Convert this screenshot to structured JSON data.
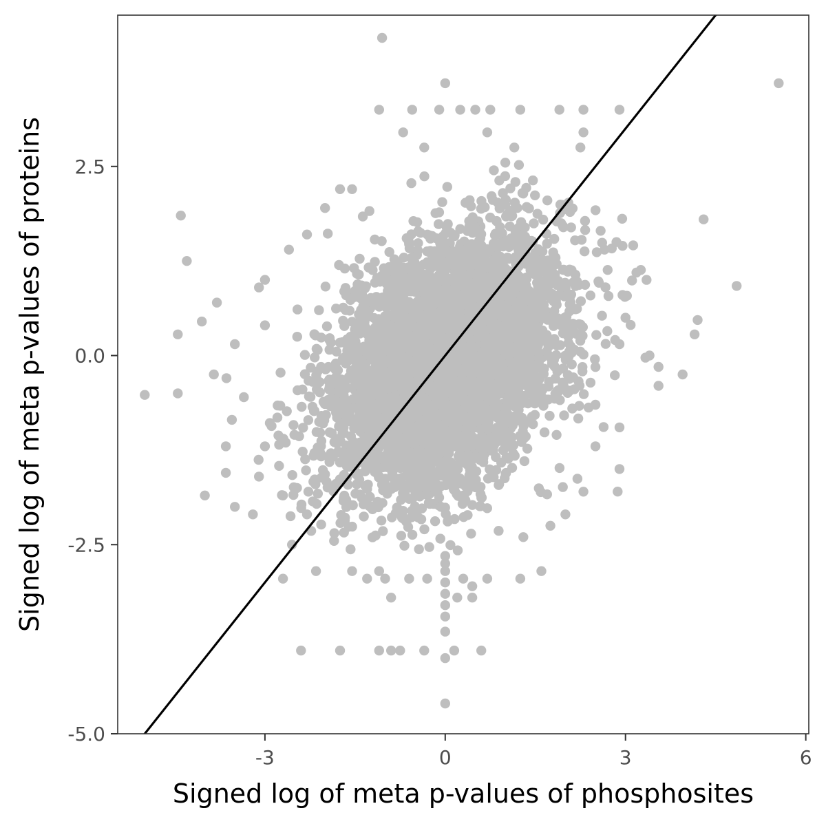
{
  "chart_data": {
    "type": "scatter",
    "title": "",
    "xlabel": "Signed log of meta p-values of phosphosites",
    "ylabel": "Signed log of meta p-values of proteins",
    "xlim": [
      -5.45,
      6.05
    ],
    "ylim": [
      -5.0,
      4.5
    ],
    "x_ticks": [
      -3,
      0,
      3,
      6
    ],
    "y_ticks": [
      2.5,
      0.0,
      -2.5,
      -5.0
    ],
    "x_tick_labels": [
      "-3",
      "0",
      "3",
      "6"
    ],
    "y_tick_labels": [
      "2.5",
      "0.0",
      "-2.5",
      "-5.0"
    ],
    "grid": false,
    "legend": "none",
    "point_color": "#bebebe",
    "line_color": "#000000",
    "reference_line": {
      "slope": 1.0,
      "intercept": 0.0
    },
    "cloud": {
      "center": [
        0.0,
        -0.1
      ],
      "x_spread": 0.95,
      "y_spread": 0.85,
      "correlation": 0.35,
      "approx_points": 5000
    },
    "points": [
      [
        -1.05,
        4.2
      ],
      [
        5.55,
        3.6
      ],
      [
        0.0,
        3.6
      ],
      [
        -1.1,
        3.25
      ],
      [
        -0.55,
        3.25
      ],
      [
        -0.1,
        3.25
      ],
      [
        0.25,
        3.25
      ],
      [
        0.5,
        3.25
      ],
      [
        0.75,
        3.25
      ],
      [
        1.25,
        3.25
      ],
      [
        1.9,
        3.25
      ],
      [
        2.3,
        3.25
      ],
      [
        2.9,
        3.25
      ],
      [
        -0.7,
        2.95
      ],
      [
        0.7,
        2.95
      ],
      [
        2.3,
        2.95
      ],
      [
        -0.35,
        2.75
      ],
      [
        1.15,
        2.75
      ],
      [
        2.25,
        2.75
      ],
      [
        -4.4,
        1.85
      ],
      [
        4.3,
        1.8
      ],
      [
        -4.3,
        1.25
      ],
      [
        -2.3,
        1.6
      ],
      [
        4.85,
        0.92
      ],
      [
        4.2,
        0.47
      ],
      [
        -4.05,
        0.45
      ],
      [
        -3.8,
        0.7
      ],
      [
        -4.45,
        0.28
      ],
      [
        4.15,
        0.28
      ],
      [
        -5.0,
        -0.52
      ],
      [
        -4.45,
        -0.5
      ],
      [
        3.95,
        -0.25
      ],
      [
        3.55,
        -0.4
      ],
      [
        3.4,
        0.0
      ],
      [
        -4.0,
        -1.85
      ],
      [
        -3.65,
        -1.55
      ],
      [
        -3.5,
        -2.0
      ],
      [
        -3.2,
        -2.1
      ],
      [
        -2.7,
        -2.95
      ],
      [
        -2.4,
        -3.9
      ],
      [
        -1.75,
        -3.9
      ],
      [
        -1.1,
        -3.9
      ],
      [
        -0.9,
        -3.9
      ],
      [
        -0.75,
        -3.9
      ],
      [
        -0.35,
        -3.9
      ],
      [
        0.15,
        -3.9
      ],
      [
        0.6,
        -3.9
      ],
      [
        0.0,
        -4.6
      ],
      [
        0.0,
        -4.0
      ],
      [
        0.0,
        -3.65
      ],
      [
        0.0,
        -3.45
      ],
      [
        0.0,
        -3.3
      ],
      [
        0.0,
        -3.15
      ],
      [
        0.0,
        -3.0
      ],
      [
        0.0,
        -2.85
      ],
      [
        0.0,
        -2.75
      ],
      [
        0.0,
        -2.65
      ],
      [
        -0.9,
        -3.2
      ],
      [
        0.2,
        -3.2
      ],
      [
        0.45,
        -3.2
      ],
      [
        0.45,
        -3.05
      ],
      [
        -2.15,
        -2.85
      ],
      [
        -1.55,
        -2.85
      ],
      [
        -1.1,
        -2.85
      ],
      [
        1.6,
        -2.85
      ],
      [
        -1.3,
        -2.95
      ],
      [
        -1.0,
        -2.95
      ],
      [
        -0.6,
        -2.95
      ],
      [
        -0.3,
        -2.95
      ],
      [
        0.3,
        -2.95
      ],
      [
        0.7,
        -2.95
      ],
      [
        1.25,
        -2.95
      ],
      [
        2.9,
        -1.5
      ],
      [
        2.9,
        -0.95
      ],
      [
        2.5,
        -0.65
      ],
      [
        3.0,
        0.5
      ],
      [
        2.95,
        0.8
      ],
      [
        3.35,
        1.0
      ],
      [
        2.65,
        1.4
      ],
      [
        2.85,
        1.5
      ],
      [
        2.95,
        1.45
      ],
      [
        1.2,
        1.95
      ],
      [
        1.7,
        2.05
      ],
      [
        1.0,
        2.55
      ],
      [
        -1.75,
        2.2
      ],
      [
        -1.55,
        2.2
      ],
      [
        -2.0,
        1.95
      ],
      [
        -2.6,
        1.4
      ],
      [
        -3.0,
        1.0
      ],
      [
        -3.1,
        0.9
      ],
      [
        -3.0,
        0.4
      ],
      [
        -3.5,
        0.15
      ],
      [
        -3.85,
        -0.25
      ],
      [
        -3.35,
        -0.55
      ],
      [
        -3.55,
        -0.85
      ],
      [
        -3.65,
        -1.2
      ],
      [
        -3.0,
        -1.2
      ],
      [
        -3.1,
        -1.6
      ],
      [
        -2.7,
        -1.85
      ],
      [
        -2.3,
        -2.1
      ],
      [
        -2.55,
        -2.5
      ],
      [
        -1.85,
        -2.45
      ],
      [
        1.3,
        -2.4
      ],
      [
        1.75,
        -2.25
      ],
      [
        2.0,
        -2.1
      ],
      [
        2.3,
        -1.8
      ],
      [
        2.5,
        -1.2
      ],
      [
        3.55,
        -0.15
      ],
      [
        2.9,
        0.15
      ]
    ]
  }
}
